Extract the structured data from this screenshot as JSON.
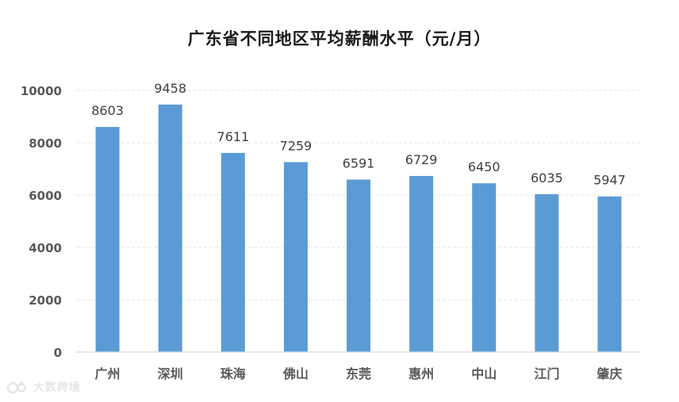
{
  "chart_data": {
    "type": "bar",
    "title": "广东省不同地区平均薪酬水平（元/月）",
    "xlabel": "",
    "ylabel": "",
    "categories": [
      "广州",
      "深圳",
      "珠海",
      "佛山",
      "东莞",
      "惠州",
      "中山",
      "江门",
      "肇庆"
    ],
    "series": [
      {
        "values": [
          8603,
          9458,
          7611,
          7259,
          6591,
          6729,
          6450,
          6035,
          5947
        ]
      }
    ],
    "ylim": [
      0,
      10000
    ],
    "yticks": [
      0,
      2000,
      4000,
      6000,
      8000,
      10000
    ],
    "grid": true,
    "legend": "none",
    "colors": {
      "bar": "#5b9bd5",
      "label": "#404040",
      "tick": "#595959",
      "grid": "#e6e6e6",
      "axis": "#d9d9d9"
    }
  },
  "watermark": {
    "text": "大数跨境"
  }
}
